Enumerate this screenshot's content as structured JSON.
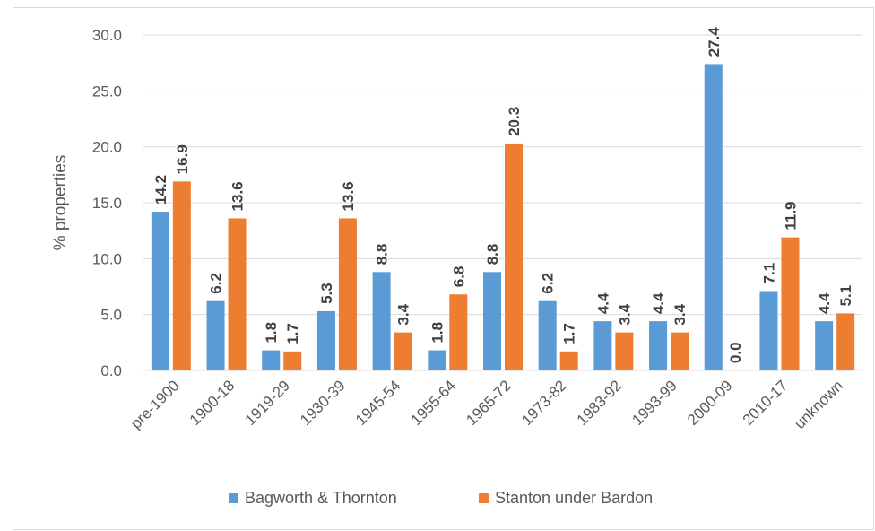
{
  "chart_data": {
    "type": "bar",
    "title": "",
    "xlabel": "",
    "ylabel": "% properties",
    "ylim": [
      0,
      30
    ],
    "yticks": [
      "0.0",
      "5.0",
      "10.0",
      "15.0",
      "20.0",
      "25.0",
      "30.0"
    ],
    "grid": true,
    "legend_position": "bottom",
    "categories": [
      "pre-1900",
      "1900-18",
      "1919-29",
      "1930-39",
      "1945-54",
      "1955-64",
      "1965-72",
      "1973-82",
      "1983-92",
      "1993-99",
      "2000-09",
      "2010-17",
      "unknown"
    ],
    "series": [
      {
        "name": "Bagworth & Thornton",
        "color": "#5b9bd5",
        "values": [
          14.2,
          6.2,
          1.8,
          5.3,
          8.8,
          1.8,
          8.8,
          6.2,
          4.4,
          4.4,
          27.4,
          7.1,
          4.4
        ],
        "labels": [
          "14.2",
          "6.2",
          "1.8",
          "5.3",
          "8.8",
          "1.8",
          "8.8",
          "6.2",
          "4.4",
          "4.4",
          "27.4",
          "7.1",
          "4.4"
        ]
      },
      {
        "name": "Stanton under Bardon",
        "color": "#ed7d31",
        "values": [
          16.9,
          13.6,
          1.7,
          13.6,
          3.4,
          6.8,
          20.3,
          1.7,
          3.4,
          3.4,
          0.0,
          11.9,
          5.1
        ],
        "labels": [
          "16.9",
          "13.6",
          "1.7",
          "13.6",
          "3.4",
          "6.8",
          "20.3",
          "1.7",
          "3.4",
          "3.4",
          "0.0",
          "11.9",
          "5.1"
        ]
      }
    ]
  }
}
